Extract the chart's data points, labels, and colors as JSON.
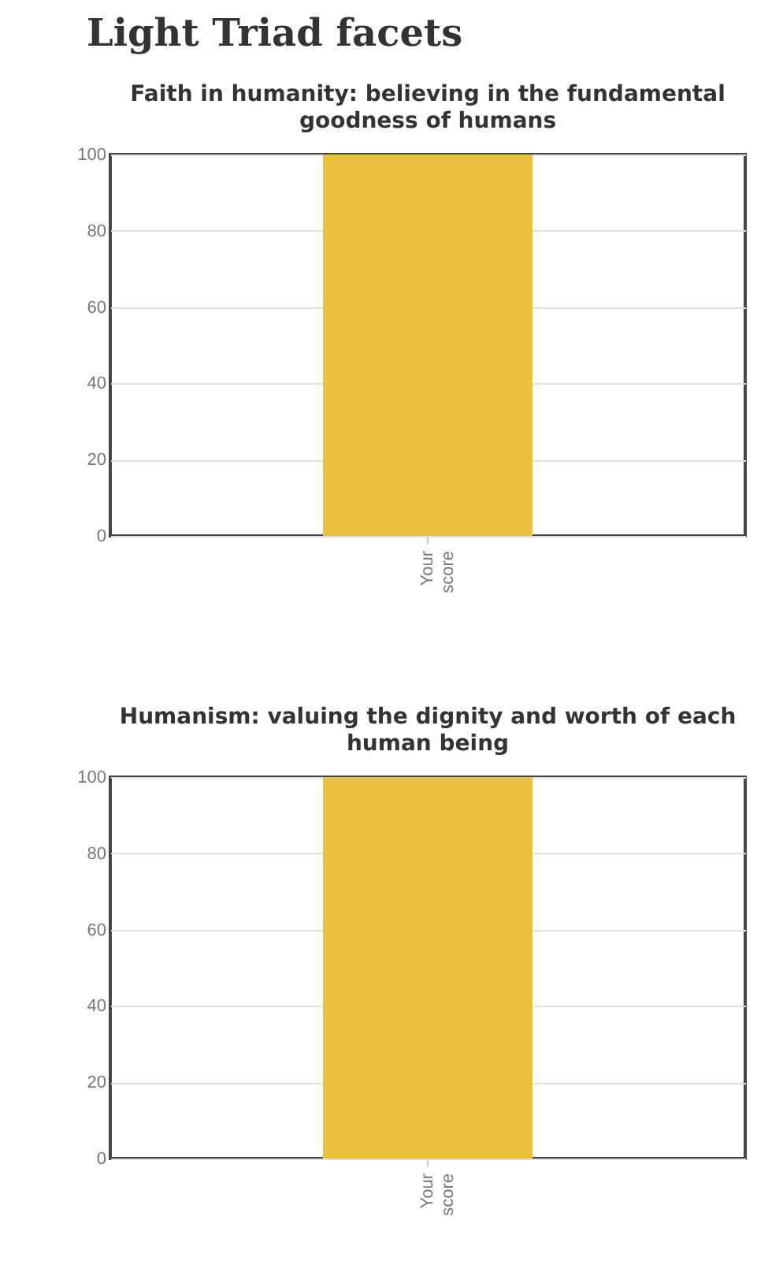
{
  "chart_data": [
    {
      "type": "bar",
      "title": "Light Triad facets",
      "subtitle": "Faith in humanity: believing in the fundamental goodness of humans",
      "categories": [
        "Your score"
      ],
      "values": [
        100
      ],
      "color": "#ecc03f",
      "ylim": [
        0,
        100
      ],
      "yticks": [
        0,
        20,
        40,
        60,
        80,
        100
      ],
      "grid": "y"
    },
    {
      "type": "bar",
      "title": "Humanism: valuing the dignity and worth of each human being",
      "categories": [
        "Your score"
      ],
      "values": [
        100
      ],
      "color": "#ecc03f",
      "ylim": [
        0,
        100
      ],
      "yticks": [
        0,
        20,
        40,
        60,
        80,
        100
      ],
      "grid": "y"
    }
  ]
}
